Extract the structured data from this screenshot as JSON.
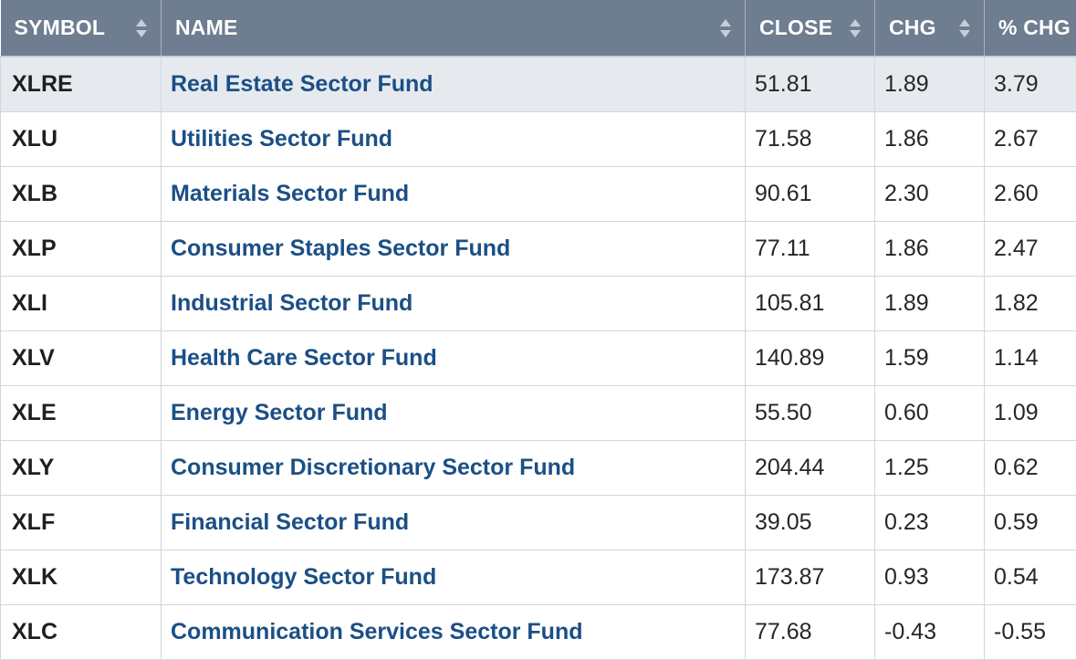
{
  "table": {
    "headers": {
      "symbol": "SYMBOL",
      "name": "NAME",
      "close": "CLOSE",
      "chg": "CHG",
      "pct_chg": "% CHG"
    },
    "rows": [
      {
        "symbol": "XLRE",
        "name": "Real Estate Sector Fund",
        "close": "51.81",
        "chg": "1.89",
        "pct_chg": "3.79"
      },
      {
        "symbol": "XLU",
        "name": "Utilities Sector Fund",
        "close": "71.58",
        "chg": "1.86",
        "pct_chg": "2.67"
      },
      {
        "symbol": "XLB",
        "name": "Materials Sector Fund",
        "close": "90.61",
        "chg": "2.30",
        "pct_chg": "2.60"
      },
      {
        "symbol": "XLP",
        "name": "Consumer Staples Sector Fund",
        "close": "77.11",
        "chg": "1.86",
        "pct_chg": "2.47"
      },
      {
        "symbol": "XLI",
        "name": "Industrial Sector Fund",
        "close": "105.81",
        "chg": "1.89",
        "pct_chg": "1.82"
      },
      {
        "symbol": "XLV",
        "name": "Health Care Sector Fund",
        "close": "140.89",
        "chg": "1.59",
        "pct_chg": "1.14"
      },
      {
        "symbol": "XLE",
        "name": "Energy Sector Fund",
        "close": "55.50",
        "chg": "0.60",
        "pct_chg": "1.09"
      },
      {
        "symbol": "XLY",
        "name": "Consumer Discretionary Sector Fund",
        "close": "204.44",
        "chg": "1.25",
        "pct_chg": "0.62"
      },
      {
        "symbol": "XLF",
        "name": "Financial Sector Fund",
        "close": "39.05",
        "chg": "0.23",
        "pct_chg": "0.59"
      },
      {
        "symbol": "XLK",
        "name": "Technology Sector Fund",
        "close": "173.87",
        "chg": "0.93",
        "pct_chg": "0.54"
      },
      {
        "symbol": "XLC",
        "name": "Communication Services Sector Fund",
        "close": "77.68",
        "chg": "-0.43",
        "pct_chg": "-0.55"
      }
    ],
    "highlighted_row": 0
  },
  "colors": {
    "header_bg": "#6e7d90",
    "link": "#1b4f86",
    "highlight_row": "#e6eaef"
  },
  "icons": {
    "sort": "sort-up-down-icon"
  }
}
